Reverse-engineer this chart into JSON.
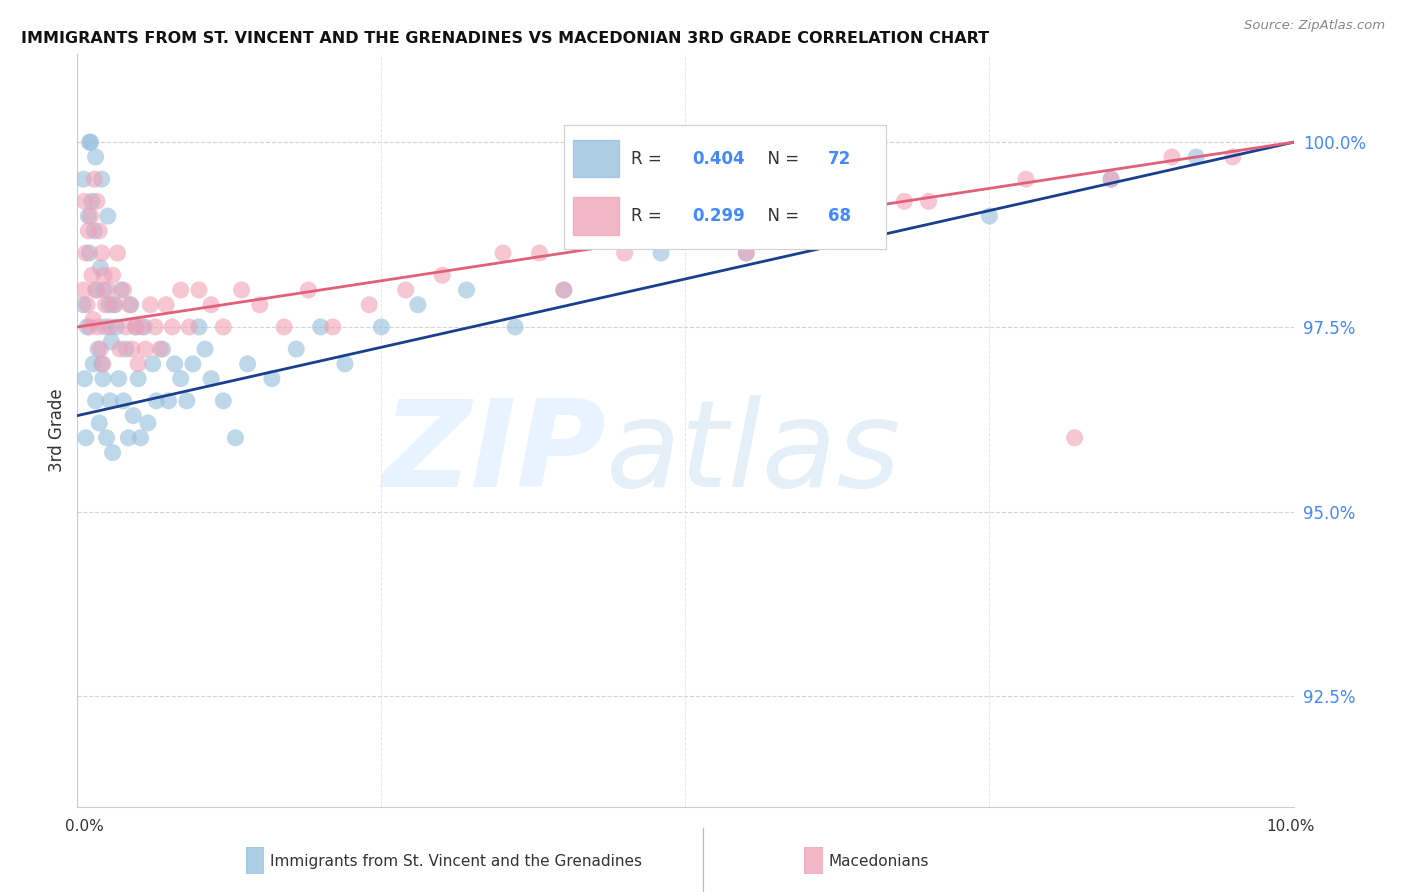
{
  "title": "IMMIGRANTS FROM ST. VINCENT AND THE GRENADINES VS MACEDONIAN 3RD GRADE CORRELATION CHART",
  "source": "Source: ZipAtlas.com",
  "ylabel": "3rd Grade",
  "xmin": 0.0,
  "xmax": 10.0,
  "ymin": 91.0,
  "ymax": 101.2,
  "y_ticks": [
    92.5,
    95.0,
    97.5,
    100.0
  ],
  "y_tick_labels": [
    "92.5%",
    "95.0%",
    "97.5%",
    "100.0%"
  ],
  "blue_color": "#93bedd",
  "pink_color": "#f0a0b5",
  "trend_blue_color": "#1a3f8f",
  "trend_pink_color": "#e0607a",
  "R_blue": 0.404,
  "N_blue": 72,
  "R_pink": 0.299,
  "N_pink": 68,
  "legend_label_blue": "Immigrants from St. Vincent and the Grenadines",
  "legend_label_pink": "Macedonians",
  "blue_x": [
    0.05,
    0.05,
    0.06,
    0.07,
    0.08,
    0.09,
    0.1,
    0.1,
    0.11,
    0.12,
    0.13,
    0.14,
    0.15,
    0.15,
    0.16,
    0.17,
    0.18,
    0.19,
    0.2,
    0.2,
    0.21,
    0.22,
    0.23,
    0.24,
    0.25,
    0.26,
    0.27,
    0.28,
    0.29,
    0.3,
    0.32,
    0.34,
    0.36,
    0.38,
    0.4,
    0.42,
    0.44,
    0.46,
    0.48,
    0.5,
    0.52,
    0.55,
    0.58,
    0.62,
    0.65,
    0.7,
    0.75,
    0.8,
    0.85,
    0.9,
    0.95,
    1.0,
    1.05,
    1.1,
    1.2,
    1.3,
    1.4,
    1.6,
    1.8,
    2.0,
    2.2,
    2.5,
    2.8,
    3.2,
    3.6,
    4.0,
    4.8,
    5.5,
    6.5,
    7.5,
    8.5,
    9.2
  ],
  "blue_y": [
    99.5,
    97.8,
    96.8,
    96.0,
    97.5,
    99.0,
    100.0,
    98.5,
    100.0,
    99.2,
    97.0,
    98.8,
    96.5,
    99.8,
    98.0,
    97.2,
    96.2,
    98.3,
    99.5,
    97.0,
    96.8,
    98.0,
    97.5,
    96.0,
    99.0,
    97.8,
    96.5,
    97.3,
    95.8,
    97.8,
    97.5,
    96.8,
    98.0,
    96.5,
    97.2,
    96.0,
    97.8,
    96.3,
    97.5,
    96.8,
    96.0,
    97.5,
    96.2,
    97.0,
    96.5,
    97.2,
    96.5,
    97.0,
    96.8,
    96.5,
    97.0,
    97.5,
    97.2,
    96.8,
    96.5,
    96.0,
    97.0,
    96.8,
    97.2,
    97.5,
    97.0,
    97.5,
    97.8,
    98.0,
    97.5,
    98.0,
    98.5,
    98.5,
    99.0,
    99.0,
    99.5,
    99.8
  ],
  "pink_x": [
    0.05,
    0.06,
    0.07,
    0.08,
    0.09,
    0.1,
    0.11,
    0.12,
    0.13,
    0.14,
    0.15,
    0.16,
    0.17,
    0.18,
    0.19,
    0.2,
    0.21,
    0.22,
    0.23,
    0.25,
    0.27,
    0.29,
    0.31,
    0.33,
    0.35,
    0.38,
    0.4,
    0.43,
    0.45,
    0.48,
    0.5,
    0.53,
    0.56,
    0.6,
    0.64,
    0.68,
    0.73,
    0.78,
    0.85,
    0.92,
    1.0,
    1.1,
    1.2,
    1.35,
    1.5,
    1.7,
    1.9,
    2.1,
    2.4,
    2.7,
    3.0,
    3.5,
    4.0,
    4.5,
    5.0,
    5.5,
    6.0,
    6.5,
    7.0,
    8.5,
    9.0,
    9.5,
    3.8,
    4.8,
    5.8,
    6.8,
    7.8,
    8.2
  ],
  "pink_y": [
    98.0,
    99.2,
    98.5,
    97.8,
    98.8,
    97.5,
    99.0,
    98.2,
    97.6,
    99.5,
    98.0,
    99.2,
    97.5,
    98.8,
    97.2,
    98.5,
    97.0,
    98.2,
    97.8,
    98.0,
    97.5,
    98.2,
    97.8,
    98.5,
    97.2,
    98.0,
    97.5,
    97.8,
    97.2,
    97.5,
    97.0,
    97.5,
    97.2,
    97.8,
    97.5,
    97.2,
    97.8,
    97.5,
    98.0,
    97.5,
    98.0,
    97.8,
    97.5,
    98.0,
    97.8,
    97.5,
    98.0,
    97.5,
    97.8,
    98.0,
    98.2,
    98.5,
    98.0,
    98.5,
    98.8,
    98.5,
    99.0,
    98.8,
    99.2,
    99.5,
    99.8,
    99.8,
    98.5,
    98.8,
    99.0,
    99.2,
    99.5,
    96.0
  ]
}
